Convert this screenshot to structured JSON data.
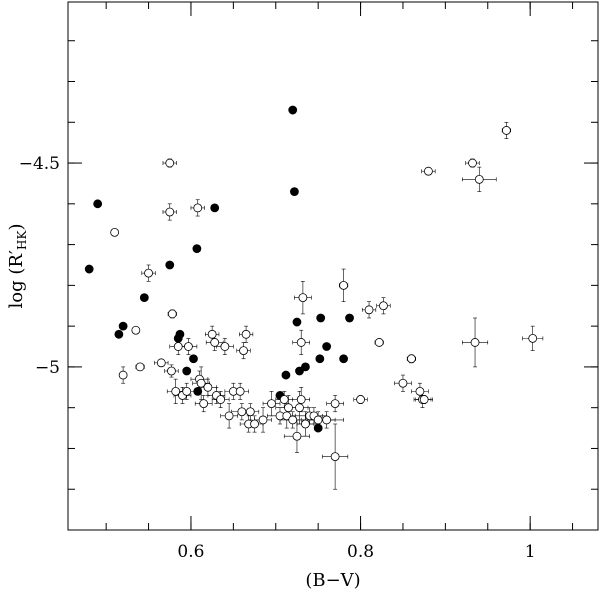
{
  "chart_data": {
    "type": "scatter",
    "xlabel": "(B−V)",
    "ylabel": "log (R′",
    "ylabel_sub": "HK",
    "ylabel_close": ")",
    "xlim": [
      0.455,
      1.08
    ],
    "ylim": [
      -5.4,
      -4.105
    ],
    "x_ticks": [
      {
        "value": 0.6,
        "label": "0.6"
      },
      {
        "value": 0.8,
        "label": "0.8"
      },
      {
        "value": 1.0,
        "label": "1"
      }
    ],
    "y_ticks": [
      {
        "value": -4.5,
        "label": "−4.5"
      },
      {
        "value": -5.0,
        "label": "−5"
      }
    ],
    "x_minor_step": 0.05,
    "y_minor_step": 0.1,
    "series": [
      {
        "marker": "filled",
        "points": [
          [
            0.49,
            -4.6
          ],
          [
            0.48,
            -4.76
          ],
          [
            0.52,
            -4.9
          ],
          [
            0.515,
            -4.92
          ],
          [
            0.545,
            -4.83
          ],
          [
            0.575,
            -4.75
          ],
          [
            0.585,
            -4.93
          ],
          [
            0.587,
            -4.92
          ],
          [
            0.595,
            -5.01
          ],
          [
            0.603,
            -4.98
          ],
          [
            0.607,
            -4.71
          ],
          [
            0.608,
            -5.06
          ],
          [
            0.628,
            -4.61
          ],
          [
            0.72,
            -4.37
          ],
          [
            0.722,
            -4.57
          ],
          [
            0.705,
            -5.07
          ],
          [
            0.712,
            -5.02
          ],
          [
            0.725,
            -4.89
          ],
          [
            0.728,
            -5.01
          ],
          [
            0.735,
            -5.0
          ],
          [
            0.75,
            -5.15
          ],
          [
            0.752,
            -4.98
          ],
          [
            0.753,
            -4.88
          ],
          [
            0.76,
            -4.95
          ],
          [
            0.78,
            -4.98
          ],
          [
            0.787,
            -4.88
          ]
        ]
      },
      {
        "marker": "open",
        "points": [
          [
            0.51,
            -4.67,
            0.0,
            0.0
          ],
          [
            0.52,
            -5.02,
            0.0,
            0.02
          ],
          [
            0.535,
            -4.91,
            0.0,
            0.0
          ],
          [
            0.54,
            -5.0,
            0.005,
            0.0
          ],
          [
            0.55,
            -4.77,
            0.008,
            0.02
          ],
          [
            0.565,
            -4.99,
            0.008,
            0.0
          ],
          [
            0.575,
            -4.5,
            0.008,
            0.01
          ],
          [
            0.575,
            -4.62,
            0.008,
            0.02
          ],
          [
            0.578,
            -4.87,
            0.005,
            0.01
          ],
          [
            0.577,
            -5.01,
            0.008,
            0.015
          ],
          [
            0.582,
            -5.06,
            0.01,
            0.03
          ],
          [
            0.585,
            -4.95,
            0.01,
            0.02
          ],
          [
            0.59,
            -5.07,
            0.01,
            0.02
          ],
          [
            0.595,
            -5.06,
            0.01,
            0.02
          ],
          [
            0.597,
            -4.95,
            0.01,
            0.02
          ],
          [
            0.608,
            -4.61,
            0.008,
            0.02
          ],
          [
            0.61,
            -5.03,
            0.01,
            0.02
          ],
          [
            0.612,
            -5.04,
            0.01,
            0.04
          ],
          [
            0.615,
            -5.09,
            0.01,
            0.02
          ],
          [
            0.62,
            -5.05,
            0.01,
            0.02
          ],
          [
            0.625,
            -4.92,
            0.008,
            0.02
          ],
          [
            0.628,
            -4.94,
            0.01,
            0.02
          ],
          [
            0.63,
            -5.07,
            0.01,
            0.02
          ],
          [
            0.635,
            -5.08,
            0.01,
            0.02
          ],
          [
            0.64,
            -4.95,
            0.01,
            0.02
          ],
          [
            0.645,
            -5.12,
            0.01,
            0.03
          ],
          [
            0.65,
            -5.06,
            0.01,
            0.02
          ],
          [
            0.658,
            -5.06,
            0.01,
            0.02
          ],
          [
            0.66,
            -5.11,
            0.012,
            0.02
          ],
          [
            0.662,
            -4.96,
            0.008,
            0.02
          ],
          [
            0.665,
            -4.92,
            0.008,
            0.02
          ],
          [
            0.668,
            -5.14,
            0.01,
            0.02
          ],
          [
            0.67,
            -5.11,
            0.01,
            0.02
          ],
          [
            0.675,
            -5.14,
            0.01,
            0.02
          ],
          [
            0.685,
            -5.13,
            0.01,
            0.03
          ],
          [
            0.695,
            -5.09,
            0.01,
            0.03
          ],
          [
            0.705,
            -5.12,
            0.015,
            0.02
          ],
          [
            0.71,
            -5.08,
            0.01,
            0.02
          ],
          [
            0.713,
            -5.12,
            0.01,
            0.03
          ],
          [
            0.715,
            -5.1,
            0.015,
            0.03
          ],
          [
            0.72,
            -5.13,
            0.015,
            0.02
          ],
          [
            0.725,
            -5.17,
            0.015,
            0.04
          ],
          [
            0.728,
            -5.1,
            0.01,
            0.04
          ],
          [
            0.73,
            -5.08,
            0.01,
            0.03
          ],
          [
            0.73,
            -4.94,
            0.01,
            0.03
          ],
          [
            0.732,
            -4.83,
            0.01,
            0.04
          ],
          [
            0.735,
            -5.14,
            0.01,
            0.03
          ],
          [
            0.74,
            -5.12,
            0.02,
            0.02
          ],
          [
            0.745,
            -5.12,
            0.01,
            0.02
          ],
          [
            0.75,
            -5.13,
            0.02,
            0.02
          ],
          [
            0.76,
            -5.13,
            0.02,
            0.02
          ],
          [
            0.77,
            -5.09,
            0.01,
            0.02
          ],
          [
            0.77,
            -5.22,
            0.015,
            0.08
          ],
          [
            0.78,
            -4.8,
            0.005,
            0.04
          ],
          [
            0.8,
            -5.08,
            0.008,
            0.01
          ],
          [
            0.81,
            -4.86,
            0.008,
            0.02
          ],
          [
            0.822,
            -4.94,
            0.005,
            0.0
          ],
          [
            0.827,
            -4.85,
            0.008,
            0.02
          ],
          [
            0.85,
            -5.04,
            0.01,
            0.02
          ],
          [
            0.86,
            -4.98,
            0.005,
            0.01
          ],
          [
            0.87,
            -5.06,
            0.01,
            0.02
          ],
          [
            0.873,
            -5.08,
            0.01,
            0.02
          ],
          [
            0.875,
            -5.08,
            0.01,
            0.01
          ],
          [
            0.88,
            -4.52,
            0.008,
            0.0
          ],
          [
            0.932,
            -4.5,
            0.008,
            0.01
          ],
          [
            0.935,
            -4.94,
            0.015,
            0.06
          ],
          [
            0.94,
            -4.54,
            0.02,
            0.03
          ],
          [
            0.972,
            -4.42,
            0.005,
            0.02
          ],
          [
            1.003,
            -4.93,
            0.012,
            0.03
          ]
        ]
      }
    ]
  }
}
